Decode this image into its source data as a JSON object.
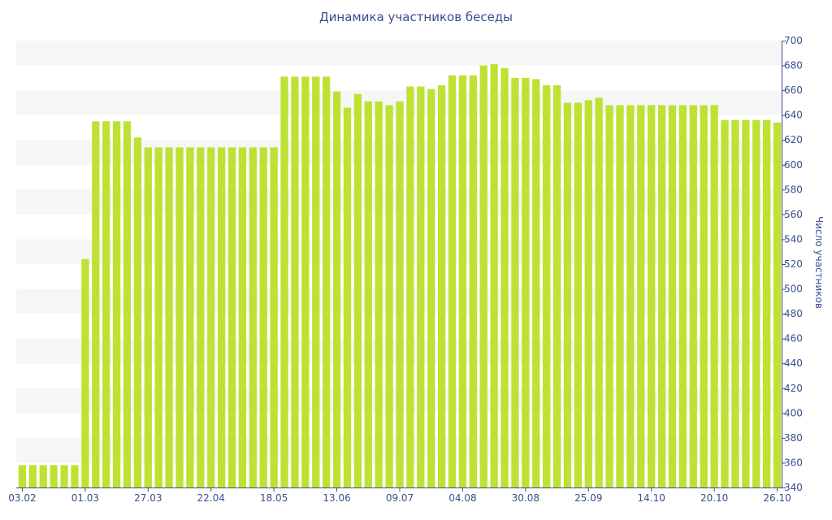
{
  "chart_data": {
    "type": "bar",
    "title": "Динамика участников беседы",
    "xlabel": "",
    "ylabel": "Число участников",
    "ylim": [
      340,
      700
    ],
    "yticks": [
      340,
      360,
      380,
      400,
      420,
      440,
      460,
      480,
      500,
      520,
      540,
      560,
      580,
      600,
      620,
      640,
      660,
      680,
      700
    ],
    "y_axis_side": "right",
    "grid": "alternating horizontal bands",
    "bar_color": "#bde234",
    "axis_color": "#3a4c8f",
    "band_color": "#f6f6f6",
    "x_tick_labels": [
      {
        "index": 0,
        "label": "03.02"
      },
      {
        "index": 6,
        "label": "01.03"
      },
      {
        "index": 12,
        "label": "27.03"
      },
      {
        "index": 18,
        "label": "22.04"
      },
      {
        "index": 24,
        "label": "18.05"
      },
      {
        "index": 30,
        "label": "13.06"
      },
      {
        "index": 36,
        "label": "09.07"
      },
      {
        "index": 42,
        "label": "04.08"
      },
      {
        "index": 48,
        "label": "30.08"
      },
      {
        "index": 54,
        "label": "25.09"
      },
      {
        "index": 60,
        "label": "14.10"
      },
      {
        "index": 66,
        "label": "20.10"
      },
      {
        "index": 72,
        "label": "26.10"
      }
    ],
    "values": [
      358,
      358,
      358,
      358,
      358,
      358,
      524,
      635,
      635,
      635,
      635,
      622,
      614,
      614,
      614,
      614,
      614,
      614,
      614,
      614,
      614,
      614,
      614,
      614,
      614,
      671,
      671,
      671,
      671,
      671,
      659,
      646,
      657,
      651,
      651,
      648,
      651,
      663,
      663,
      661,
      664,
      672,
      672,
      672,
      680,
      681,
      678,
      670,
      670,
      669,
      664,
      664,
      650,
      650,
      652,
      654,
      648,
      648,
      648,
      648,
      648,
      648,
      648,
      648,
      648,
      648,
      648,
      636,
      636,
      636,
      636,
      636,
      634
    ]
  }
}
